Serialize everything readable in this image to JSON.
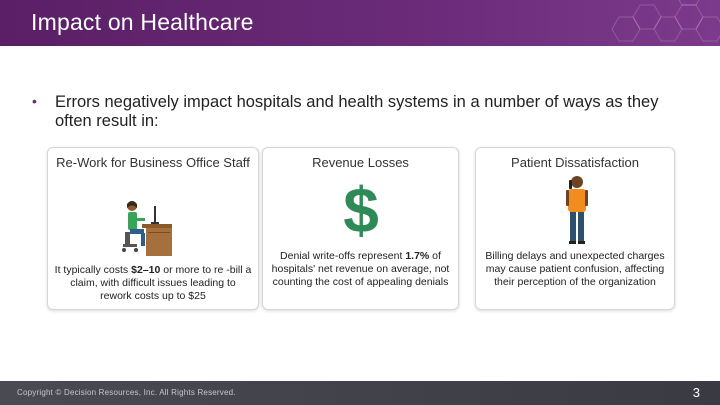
{
  "header": {
    "title": "Impact on Healthcare"
  },
  "intro": {
    "bullet": "•",
    "text": "Errors negatively impact hospitals and health systems in a number of ways as they often result in:"
  },
  "cards": [
    {
      "title": "Re-Work for Business Office Staff",
      "body_pre": "It typically costs ",
      "body_bold": "$2–10",
      "body_post": " or more to re -bill a claim, with difficult issues leading to rework costs up to $25",
      "icon": "office-worker-at-desk-icon"
    },
    {
      "title": "Revenue Losses",
      "body_pre": "Denial write-offs represent ",
      "body_bold": "1.7%",
      "body_post": " of hospitals' net revenue on average, not counting the cost of appealing denials",
      "icon": "dollar-sign-icon"
    },
    {
      "title": "Patient Dissatisfaction",
      "body_pre": "Billing delays and unexpected charges may cause patient confusion, affecting their perception of the organization",
      "icon": "person-on-phone-icon"
    }
  ],
  "footer": {
    "copyright": "Copyright © Decision Resources, Inc. All Rights Reserved.",
    "page_number": "3"
  },
  "colors": {
    "header": "#6a2a78",
    "footer": "#3f4047",
    "dollar": "#2e8b57"
  }
}
